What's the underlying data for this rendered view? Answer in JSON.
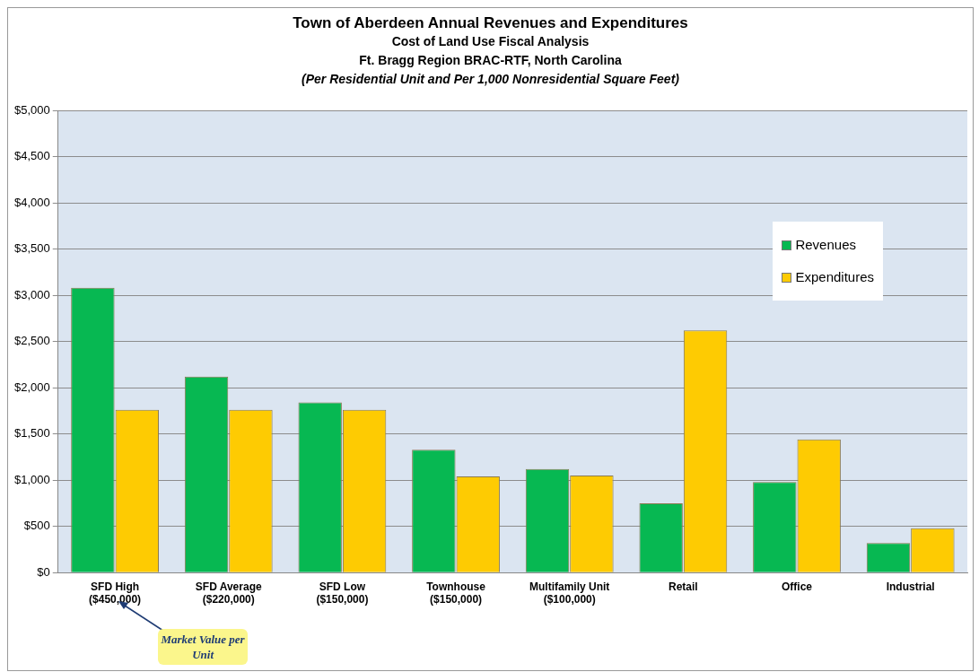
{
  "chart_data": {
    "type": "bar",
    "title": "Town of Aberdeen Annual Revenues and Expenditures",
    "subtitle": "Cost of Land Use Fiscal Analysis\nFt. Bragg Region BRAC-RTF, North Carolina",
    "annotations": [
      "(Per Residential Unit and Per 1,000 Nonresidential Square Feet)",
      "Market Value per Unit"
    ],
    "categories": [
      "SFD High\n($450,000)",
      "SFD Average\n($220,000)",
      "SFD Low\n($150,000)",
      "Townhouse\n($150,000)",
      "Multifamily Unit\n($100,000)",
      "Retail",
      "Office",
      "Industrial"
    ],
    "series": [
      {
        "name": "Revenues",
        "color": "#07b852",
        "values": [
          3080,
          2120,
          1840,
          1330,
          1120,
          750,
          980,
          320
        ]
      },
      {
        "name": "Expenditures",
        "color": "#fecb02",
        "values": [
          1760,
          1760,
          1760,
          1040,
          1050,
          2620,
          1440,
          480
        ]
      }
    ],
    "ylim": [
      0,
      5000
    ],
    "yticks": [
      {
        "value": 0,
        "label": "$0"
      },
      {
        "value": 500,
        "label": "$500"
      },
      {
        "value": 1000,
        "label": "$1,000"
      },
      {
        "value": 1500,
        "label": "$1,500"
      },
      {
        "value": 2000,
        "label": "$2,000"
      },
      {
        "value": 2500,
        "label": "$2,500"
      },
      {
        "value": 3000,
        "label": "$3,000"
      },
      {
        "value": 3500,
        "label": "$3,500"
      },
      {
        "value": 4000,
        "label": "$4,000"
      },
      {
        "value": 4500,
        "label": "$4,500"
      },
      {
        "value": 5000,
        "label": "$5,000"
      }
    ],
    "grid": "y",
    "legend": "top right"
  }
}
